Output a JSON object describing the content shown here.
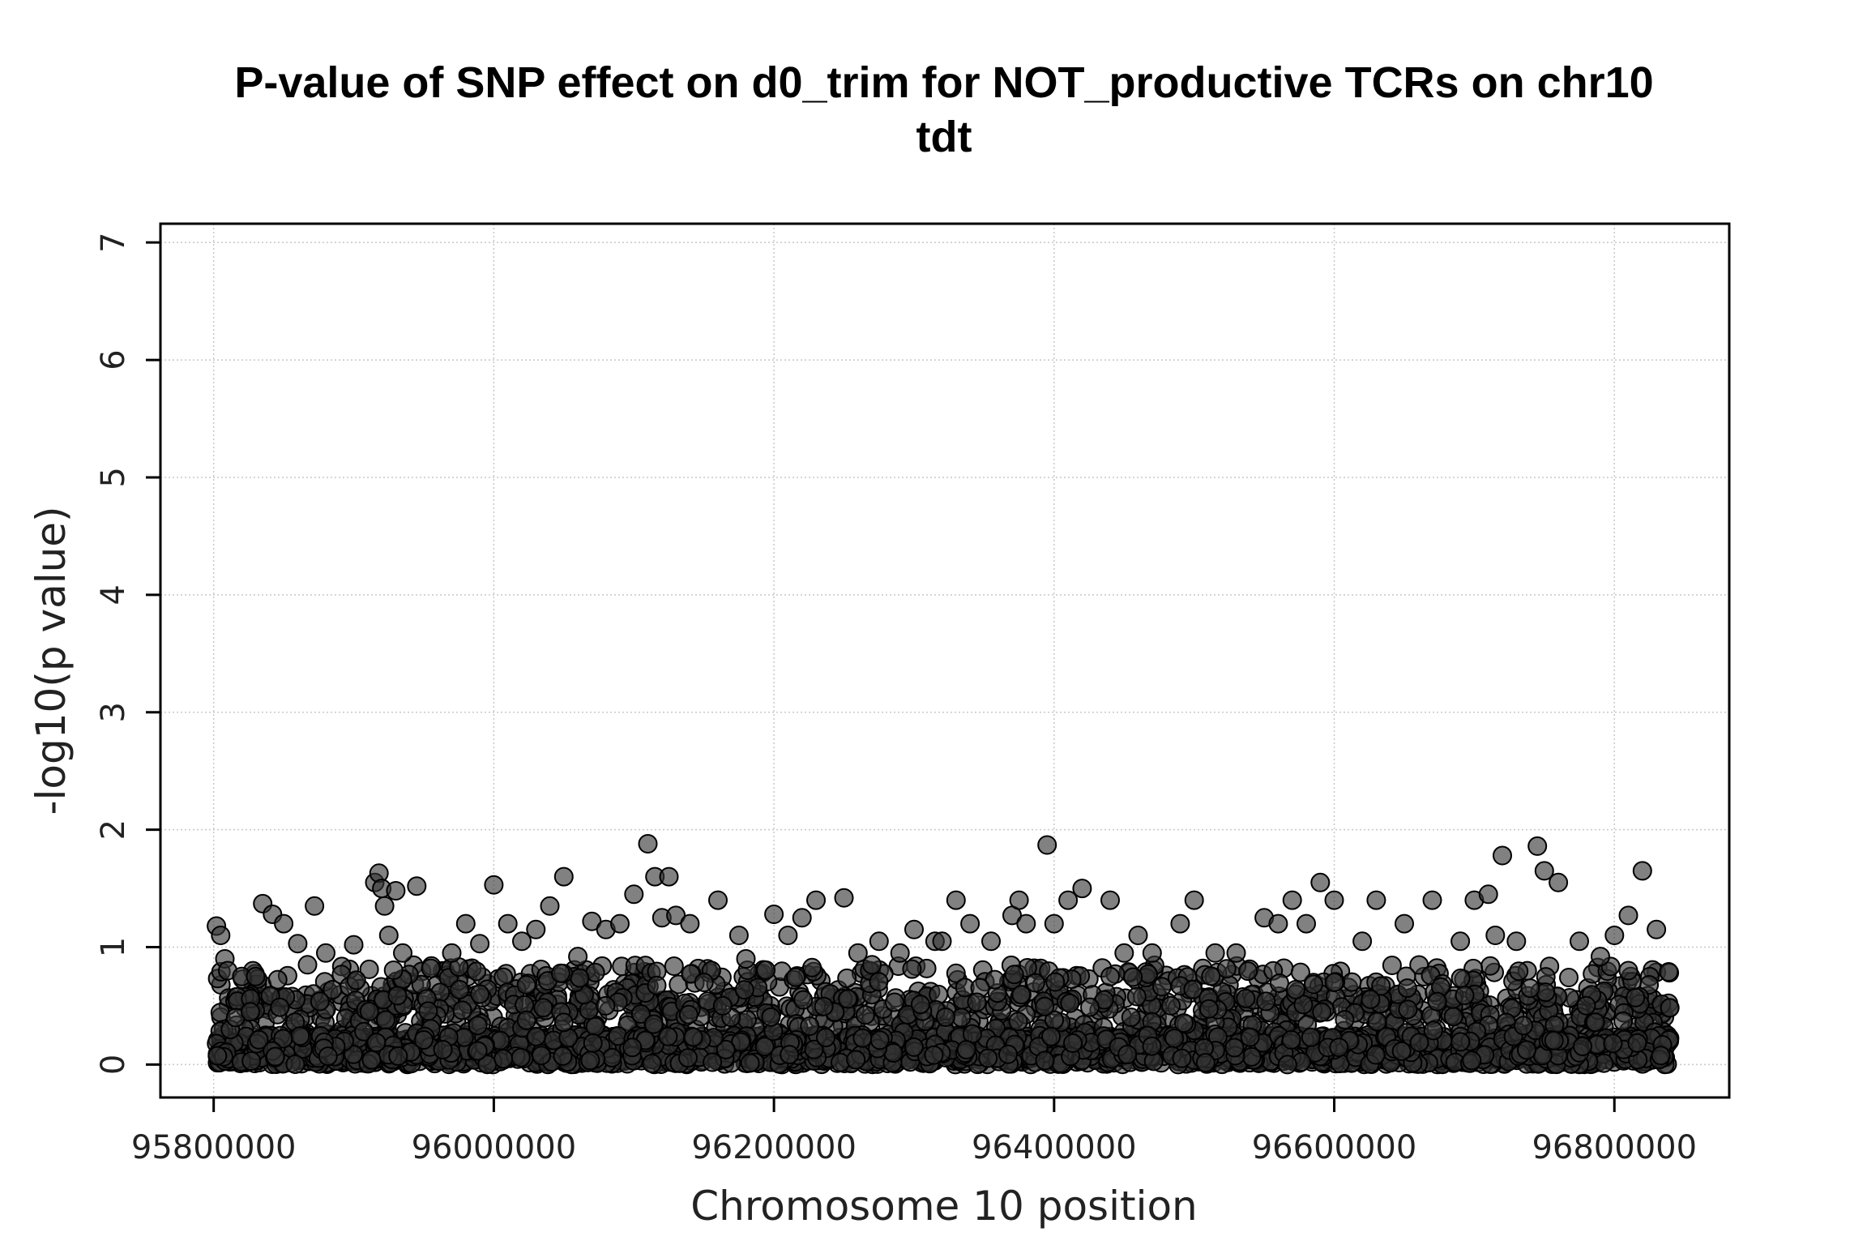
{
  "chart_data": {
    "type": "scatter",
    "title": "P-value of SNP effect on d0_trim for NOT_productive TCRs on chr10",
    "subtitle": "tdt",
    "xlabel": "Chromosome 10 position",
    "ylabel": "-log10(p value)",
    "xlim": [
      95762000,
      96882000
    ],
    "ylim": [
      -0.28,
      7.16
    ],
    "x_ticks": [
      95800000,
      96000000,
      96200000,
      96400000,
      96600000,
      96800000
    ],
    "x_tick_labels": [
      "95800000",
      "96000000",
      "96200000",
      "96400000",
      "96600000",
      "96800000"
    ],
    "y_ticks": [
      0,
      1,
      2,
      3,
      4,
      5,
      6,
      7
    ],
    "y_tick_labels": [
      "0",
      "1",
      "2",
      "3",
      "4",
      "5",
      "6",
      "7"
    ],
    "grid": true,
    "legend": "none",
    "point_color": "#333333",
    "series": [
      {
        "x": [
          95802000,
          95805000,
          95808000,
          95810000,
          95820000,
          95835000,
          95842000,
          95850000,
          95860000,
          95872000,
          95880000,
          95900000,
          95915000,
          95918000,
          95920000,
          95922000,
          95925000,
          95930000,
          95935000,
          95945000,
          95955000,
          95970000,
          95980000,
          95990000,
          96000000,
          96010000,
          96020000,
          96030000,
          96040000,
          96050000,
          96060000,
          96070000,
          96080000,
          96090000,
          96100000,
          96110000,
          96115000,
          96120000,
          96125000,
          96130000,
          96140000,
          96160000,
          96175000,
          96180000,
          96200000,
          96210000,
          96220000,
          96230000,
          96250000,
          96260000,
          96275000,
          96290000,
          96300000,
          96315000,
          96320000,
          96330000,
          96340000,
          96355000,
          96370000,
          96375000,
          96380000,
          96395000,
          96400000,
          96410000,
          96420000,
          96440000,
          96450000,
          96460000,
          96470000,
          96490000,
          96500000,
          96515000,
          96530000,
          96550000,
          96560000,
          96570000,
          96580000,
          96590000,
          96600000,
          96620000,
          96630000,
          96650000,
          96670000,
          96690000,
          96700000,
          96710000,
          96715000,
          96720000,
          96730000,
          96745000,
          96750000,
          96760000,
          96775000,
          96790000,
          96800000,
          96810000,
          96820000,
          96830000,
          95830000,
          95990000,
          96150000,
          96270000,
          96440000,
          96600000,
          96740000,
          96810000
        ],
        "y": [
          1.18,
          1.1,
          0.9,
          0.8,
          0.75,
          1.37,
          1.28,
          1.2,
          1.03,
          1.35,
          0.95,
          1.02,
          1.55,
          1.63,
          1.5,
          1.35,
          1.1,
          1.48,
          0.95,
          1.52,
          0.82,
          0.95,
          1.2,
          1.03,
          1.53,
          1.2,
          1.05,
          1.15,
          1.35,
          1.6,
          0.92,
          1.22,
          1.15,
          1.2,
          1.45,
          1.88,
          1.6,
          1.25,
          1.6,
          1.27,
          1.2,
          1.4,
          1.1,
          0.9,
          1.28,
          1.1,
          1.25,
          1.4,
          1.42,
          0.95,
          1.05,
          0.95,
          1.15,
          1.05,
          1.05,
          1.4,
          1.2,
          1.05,
          1.27,
          1.4,
          1.2,
          1.87,
          1.2,
          1.4,
          1.5,
          1.4,
          0.95,
          1.1,
          0.95,
          1.2,
          1.4,
          0.95,
          0.95,
          1.25,
          1.2,
          1.4,
          1.2,
          1.55,
          1.4,
          1.05,
          1.4,
          1.2,
          1.4,
          1.05,
          1.4,
          1.45,
          1.1,
          1.78,
          1.05,
          1.86,
          1.65,
          1.55,
          1.05,
          0.92,
          1.1,
          1.27,
          1.65,
          1.15,
          0.75,
          0.6,
          0.7,
          0.85,
          0.75,
          0.7,
          0.65,
          0.8
        ]
      }
    ]
  }
}
